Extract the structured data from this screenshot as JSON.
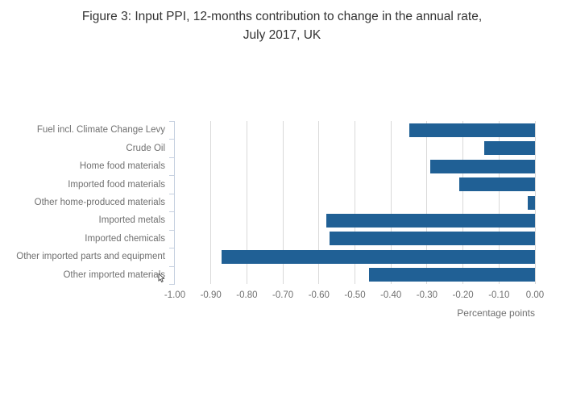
{
  "header": {
    "title_line1": "Figure 3: Input PPI, 12-months contribution to change in the annual rate,",
    "title_line2": "July 2017, UK"
  },
  "chart_data": {
    "type": "bar",
    "orientation": "horizontal",
    "title": "Figure 3: Input PPI, 12-months contribution to change in the annual rate, July 2017, UK",
    "categories": [
      "Fuel incl. Climate Change Levy",
      "Crude Oil",
      "Home food materials",
      "Imported food materials",
      "Other home-produced materials",
      "Imported metals",
      "Imported chemicals",
      "Other imported parts and equipment",
      "Other imported materials"
    ],
    "values": [
      -0.35,
      -0.14,
      -0.29,
      -0.21,
      -0.02,
      -0.58,
      -0.57,
      -0.87,
      -0.46
    ],
    "xlabel": "Percentage points",
    "ylabel": "",
    "xlim": [
      -1.0,
      0.0
    ],
    "xticks": [
      -1.0,
      -0.9,
      -0.8,
      -0.7,
      -0.6,
      -0.5,
      -0.4,
      -0.3,
      -0.2,
      -0.1,
      0.0
    ],
    "xtick_labels": [
      "-1.00",
      "-0.90",
      "-0.80",
      "-0.70",
      "-0.60",
      "-0.50",
      "-0.40",
      "-0.30",
      "-0.20",
      "-0.10",
      "0.00"
    ],
    "grid": true,
    "legend": false
  },
  "colors": {
    "bar": "#206095",
    "title_text": "#333333",
    "axis_text": "#707070",
    "gridline": "#d9d9d9",
    "axis_line": "#c6d0e0",
    "background": "#ffffff"
  }
}
